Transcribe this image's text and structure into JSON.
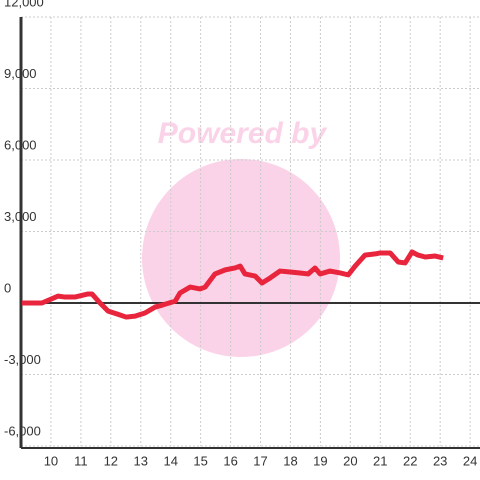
{
  "chart_data": {
    "type": "line",
    "watermark": "Powered by",
    "x": [
      9.03,
      9.7,
      10.24,
      10.47,
      10.8,
      11.24,
      11.37,
      11.64,
      11.91,
      12.21,
      12.51,
      12.81,
      13.14,
      13.48,
      13.74,
      14.15,
      14.31,
      14.65,
      14.98,
      15.15,
      15.48,
      15.82,
      16.15,
      16.32,
      16.48,
      16.82,
      17.05,
      17.32,
      17.65,
      17.99,
      18.32,
      18.59,
      18.82,
      18.99,
      19.32,
      19.66,
      19.93,
      20.16,
      20.49,
      20.83,
      21.0,
      21.33,
      21.6,
      21.83,
      22.06,
      22.26,
      22.5,
      22.83,
      23.1
    ],
    "series": [
      {
        "color": "#e8253c",
        "values": [
          0,
          0,
          290,
          250,
          250,
          380,
          380,
          0,
          -340,
          -460,
          -590,
          -550,
          -420,
          -170,
          -80,
          80,
          420,
          670,
          590,
          670,
          1220,
          1390,
          1470,
          1550,
          1220,
          1130,
          840,
          1050,
          1340,
          1300,
          1260,
          1220,
          1470,
          1220,
          1340,
          1260,
          1180,
          1550,
          2010,
          2060,
          2100,
          2100,
          1720,
          1680,
          2140,
          2010,
          1930,
          1970,
          1890
        ]
      }
    ],
    "xlim": [
      9,
      24.33
    ],
    "xticks": [
      10,
      11,
      12,
      13,
      14,
      15,
      16,
      17,
      18,
      19,
      20,
      21,
      22,
      23,
      24
    ],
    "ylim": [
      -6000,
      12000
    ],
    "yticks": [
      {
        "value": -6000,
        "label": "-6,000"
      },
      {
        "value": -3000,
        "label": "-3,000"
      },
      0,
      {
        "value": 3000,
        "label": "3,000"
      },
      {
        "value": 6000,
        "label": "6,000"
      },
      {
        "value": 9000,
        "label": "9,000"
      },
      {
        "value": 12000,
        "label": "12,000"
      }
    ],
    "grid": true
  }
}
